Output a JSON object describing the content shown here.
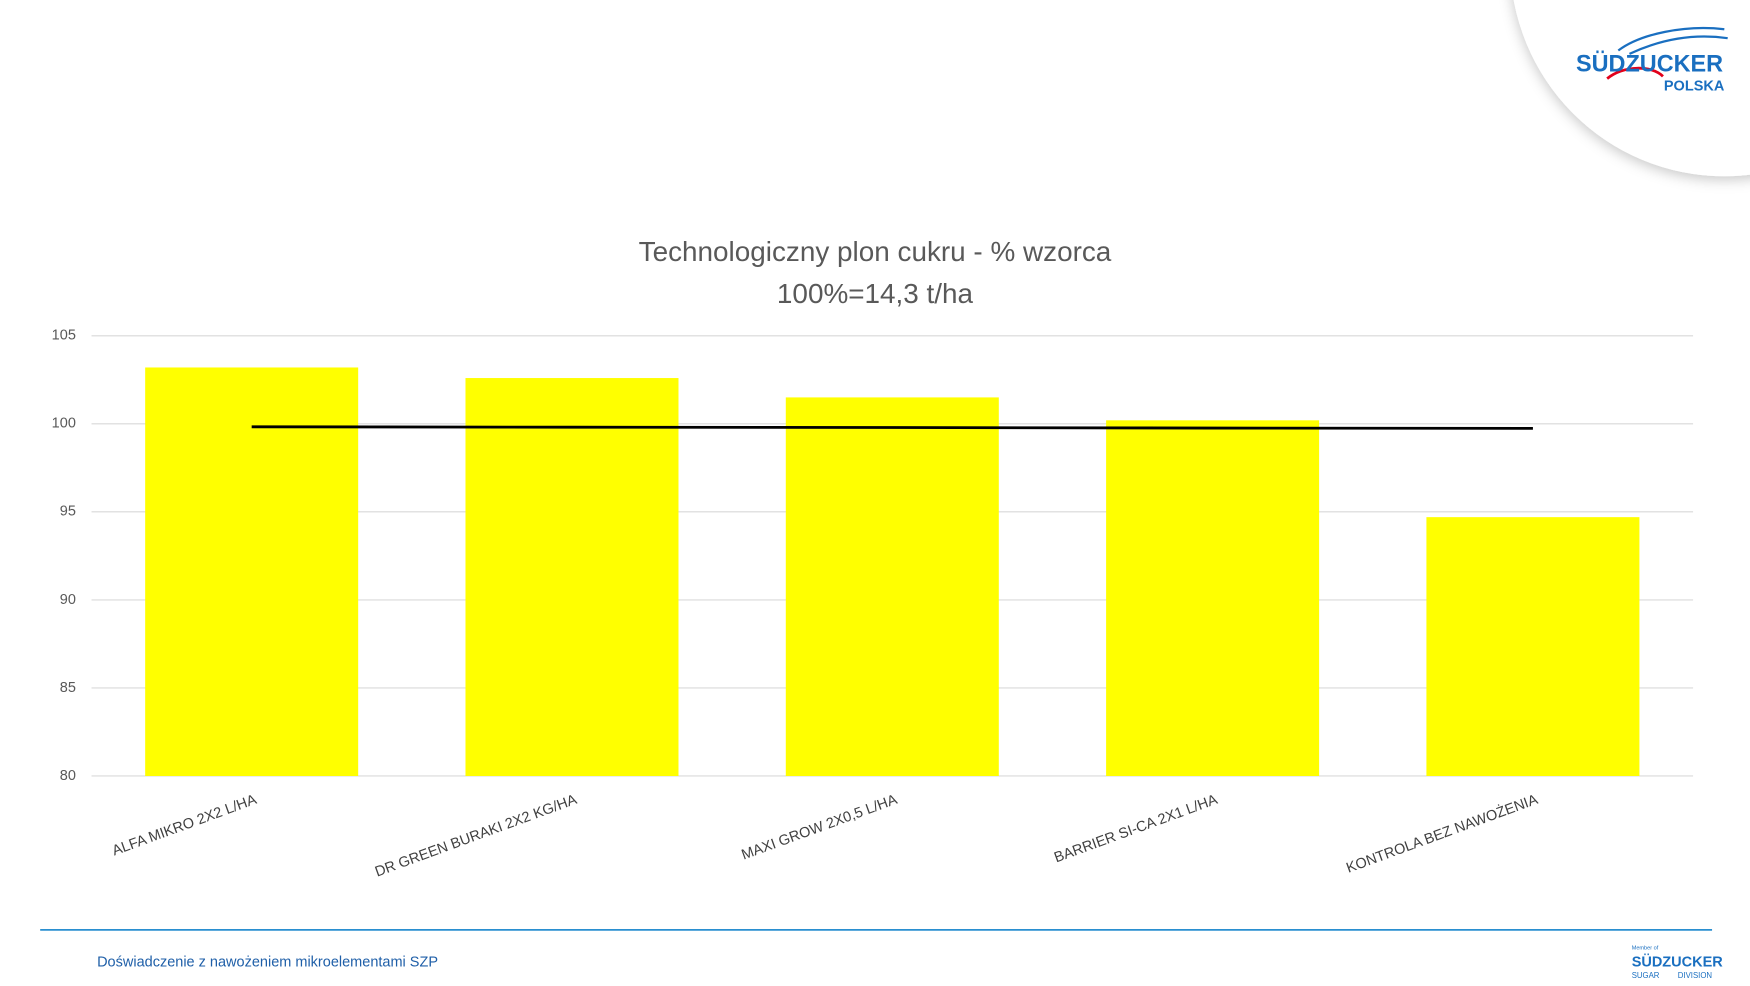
{
  "chart_data": {
    "type": "bar",
    "title": "Technologiczny plon cukru - % wzorca",
    "subtitle": "100%=14,3 t/ha",
    "categories": [
      "ALFA MIKRO 2X2 L/HA",
      "DR GREEN BURAKI 2X2 KG/HA",
      "MAXI GROW 2X0,5 L/HA",
      "BARRIER SI-CA 2X1 L/HA",
      "KONTROLA BEZ NAWOŻENIA"
    ],
    "series": [
      {
        "type": "bar",
        "color": "#ffff00",
        "values": [
          103.2,
          102.6,
          101.5,
          100.2,
          94.7
        ]
      },
      {
        "type": "line",
        "color": "#000000",
        "values": [
          99.83,
          99.81,
          99.79,
          99.76,
          99.74
        ]
      }
    ],
    "ylim": [
      80,
      105
    ],
    "yticks": [
      80,
      85,
      90,
      95,
      100,
      105
    ],
    "grid": true
  },
  "footer": {
    "text": "Doświadczenie z nawożeniem mikroelementami SZP"
  },
  "logo": {
    "name": "SÜDZUCKER",
    "country": "POLSKA"
  },
  "small_logo": {
    "member": "Member of",
    "name": "SÜDZUCKER",
    "sugar": "SUGAR",
    "division": "DIVISION"
  }
}
